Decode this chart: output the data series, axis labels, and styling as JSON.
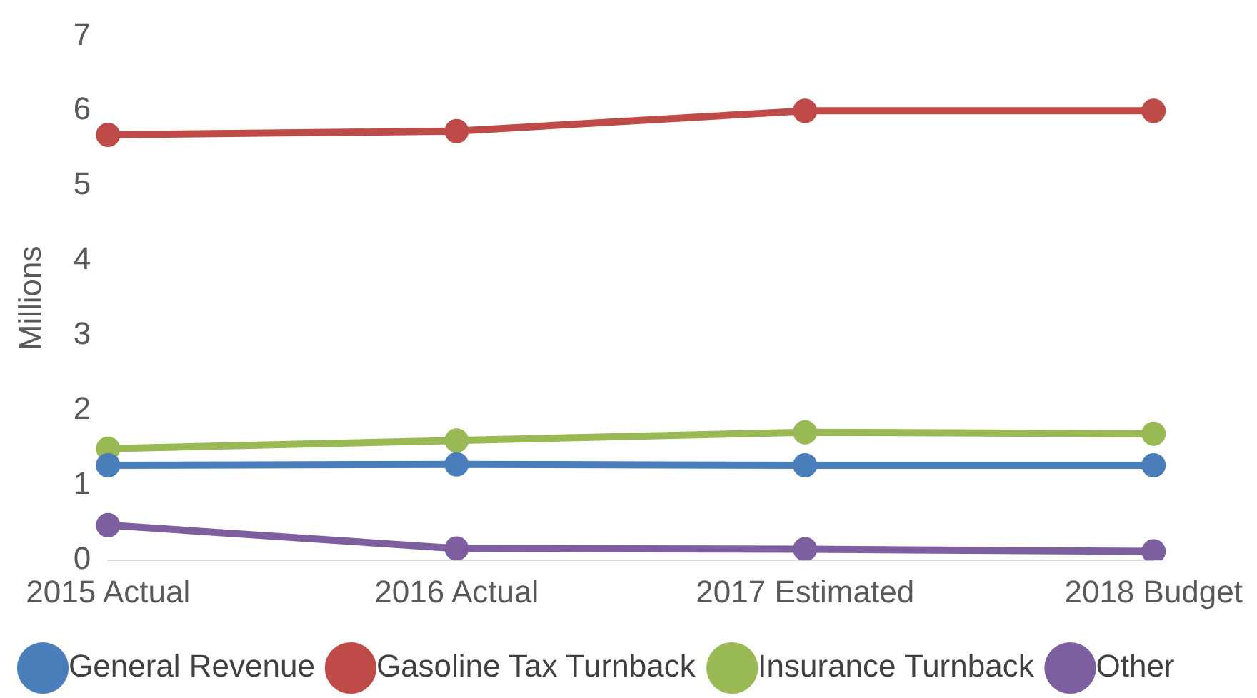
{
  "chart_data": {
    "type": "line",
    "ylabel": "Millions",
    "categories": [
      "2015 Actual",
      "2016 Actual",
      "2017 Estimated",
      "2018 Budget"
    ],
    "series": [
      {
        "name": "General Revenue",
        "color": "#4a7ebb",
        "values": [
          1.27,
          1.28,
          1.27,
          1.27
        ]
      },
      {
        "name": "Gasoline Tax Turnback",
        "color": "#be4b48",
        "values": [
          5.68,
          5.73,
          6.0,
          6.0
        ]
      },
      {
        "name": "Insurance Turnback",
        "color": "#98b954",
        "values": [
          1.49,
          1.6,
          1.71,
          1.69
        ]
      },
      {
        "name": "Other",
        "color": "#7d5fa0",
        "values": [
          0.47,
          0.16,
          0.15,
          0.12
        ]
      }
    ],
    "ylim": [
      0,
      7
    ],
    "yticks": [
      0,
      1,
      2,
      3,
      4,
      5,
      6,
      7
    ],
    "grid": false,
    "legend": "bottom",
    "marker": "circle",
    "line_style": "solid"
  }
}
